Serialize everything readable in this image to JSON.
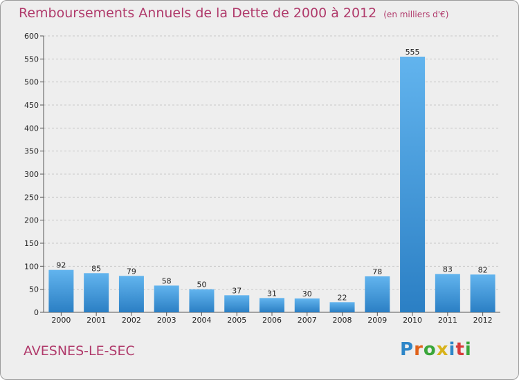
{
  "header": {
    "title": "Remboursements Annuels de la Dette de 2000 à 2012",
    "unit": "(en milliers d'€)"
  },
  "footer": {
    "commune": "AVESNES-LE-SEC",
    "logo": "Proxiti"
  },
  "colors": {
    "title": "#b03a6b",
    "bar_top": "#62b4ee",
    "bar_bottom": "#2b7fc4",
    "grid": "#c8c8c8",
    "background": "#eeeeee"
  },
  "chart_data": {
    "type": "bar",
    "title": "Remboursements Annuels de la Dette de 2000 à 2012",
    "categories": [
      "2000",
      "2001",
      "2002",
      "2003",
      "2004",
      "2005",
      "2006",
      "2007",
      "2008",
      "2009",
      "2010",
      "2011",
      "2012"
    ],
    "values": [
      92,
      85,
      79,
      58,
      50,
      37,
      31,
      30,
      22,
      78,
      555,
      83,
      82
    ],
    "ylim": [
      0,
      600
    ],
    "yticks": [
      0,
      50,
      100,
      150,
      200,
      250,
      300,
      350,
      400,
      450,
      500,
      550,
      600
    ],
    "grid": true,
    "xlabel": "",
    "ylabel": ""
  }
}
